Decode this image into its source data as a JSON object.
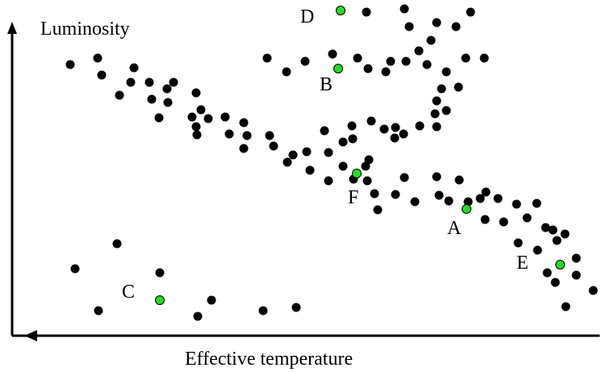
{
  "diagram": {
    "y_axis_label": "Luminosity",
    "x_axis_label": "Effective temperature",
    "colors": {
      "star": "#000000",
      "highlight": "#22dd22",
      "axis": "#000000",
      "background": "#ffffff"
    }
  },
  "labeled_points": [
    {
      "label": "A"
    },
    {
      "label": "B"
    },
    {
      "label": "C"
    },
    {
      "label": "D"
    },
    {
      "label": "E"
    },
    {
      "label": "F"
    }
  ]
}
